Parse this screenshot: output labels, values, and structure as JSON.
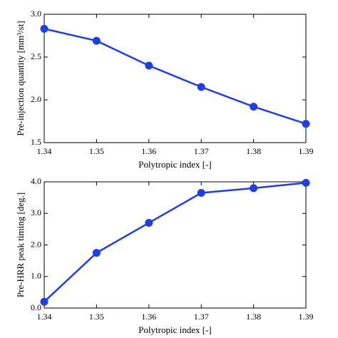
{
  "chart_data": [
    {
      "type": "line",
      "x": [
        1.34,
        1.35,
        1.36,
        1.37,
        1.38,
        1.39
      ],
      "series": [
        {
          "color": "#1f3fe0",
          "values": [
            2.83,
            2.69,
            2.4,
            2.15,
            1.92,
            1.72
          ]
        }
      ],
      "xlabel": "Polytropic index [-]",
      "ylabel": "Pre-injection quantity [mm³/st]",
      "xlim": [
        1.34,
        1.39
      ],
      "xticks": [
        1.34,
        1.35,
        1.36,
        1.37,
        1.38,
        1.39
      ],
      "ylim": [
        1.5,
        3.0
      ],
      "yticks": [
        1.5,
        {
          "value": 2.0,
          "label": "2.0"
        },
        2.5,
        {
          "value": 3.0,
          "label": "3.0"
        }
      ],
      "grid": false
    },
    {
      "type": "line",
      "x": [
        1.34,
        1.35,
        1.36,
        1.37,
        1.38,
        1.39
      ],
      "series": [
        {
          "color": "#1f3fe0",
          "values": [
            0.2,
            1.75,
            2.7,
            3.65,
            3.8,
            3.97
          ]
        }
      ],
      "xlabel": "Polytropic index [-]",
      "ylabel": "Pre-HRR peak timing [deg.]",
      "xlim": [
        1.34,
        1.39
      ],
      "xticks": [
        1.34,
        1.35,
        1.36,
        1.37,
        1.38,
        1.39
      ],
      "ylim": [
        0.0,
        4.0
      ],
      "yticks": [
        {
          "value": 0.0,
          "label": "0.0"
        },
        {
          "value": 1.0,
          "label": "1.0"
        },
        {
          "value": 2.0,
          "label": "2.0"
        },
        {
          "value": 3.0,
          "label": "3.0"
        },
        {
          "value": 4.0,
          "label": "4.0"
        }
      ],
      "grid": false
    }
  ]
}
